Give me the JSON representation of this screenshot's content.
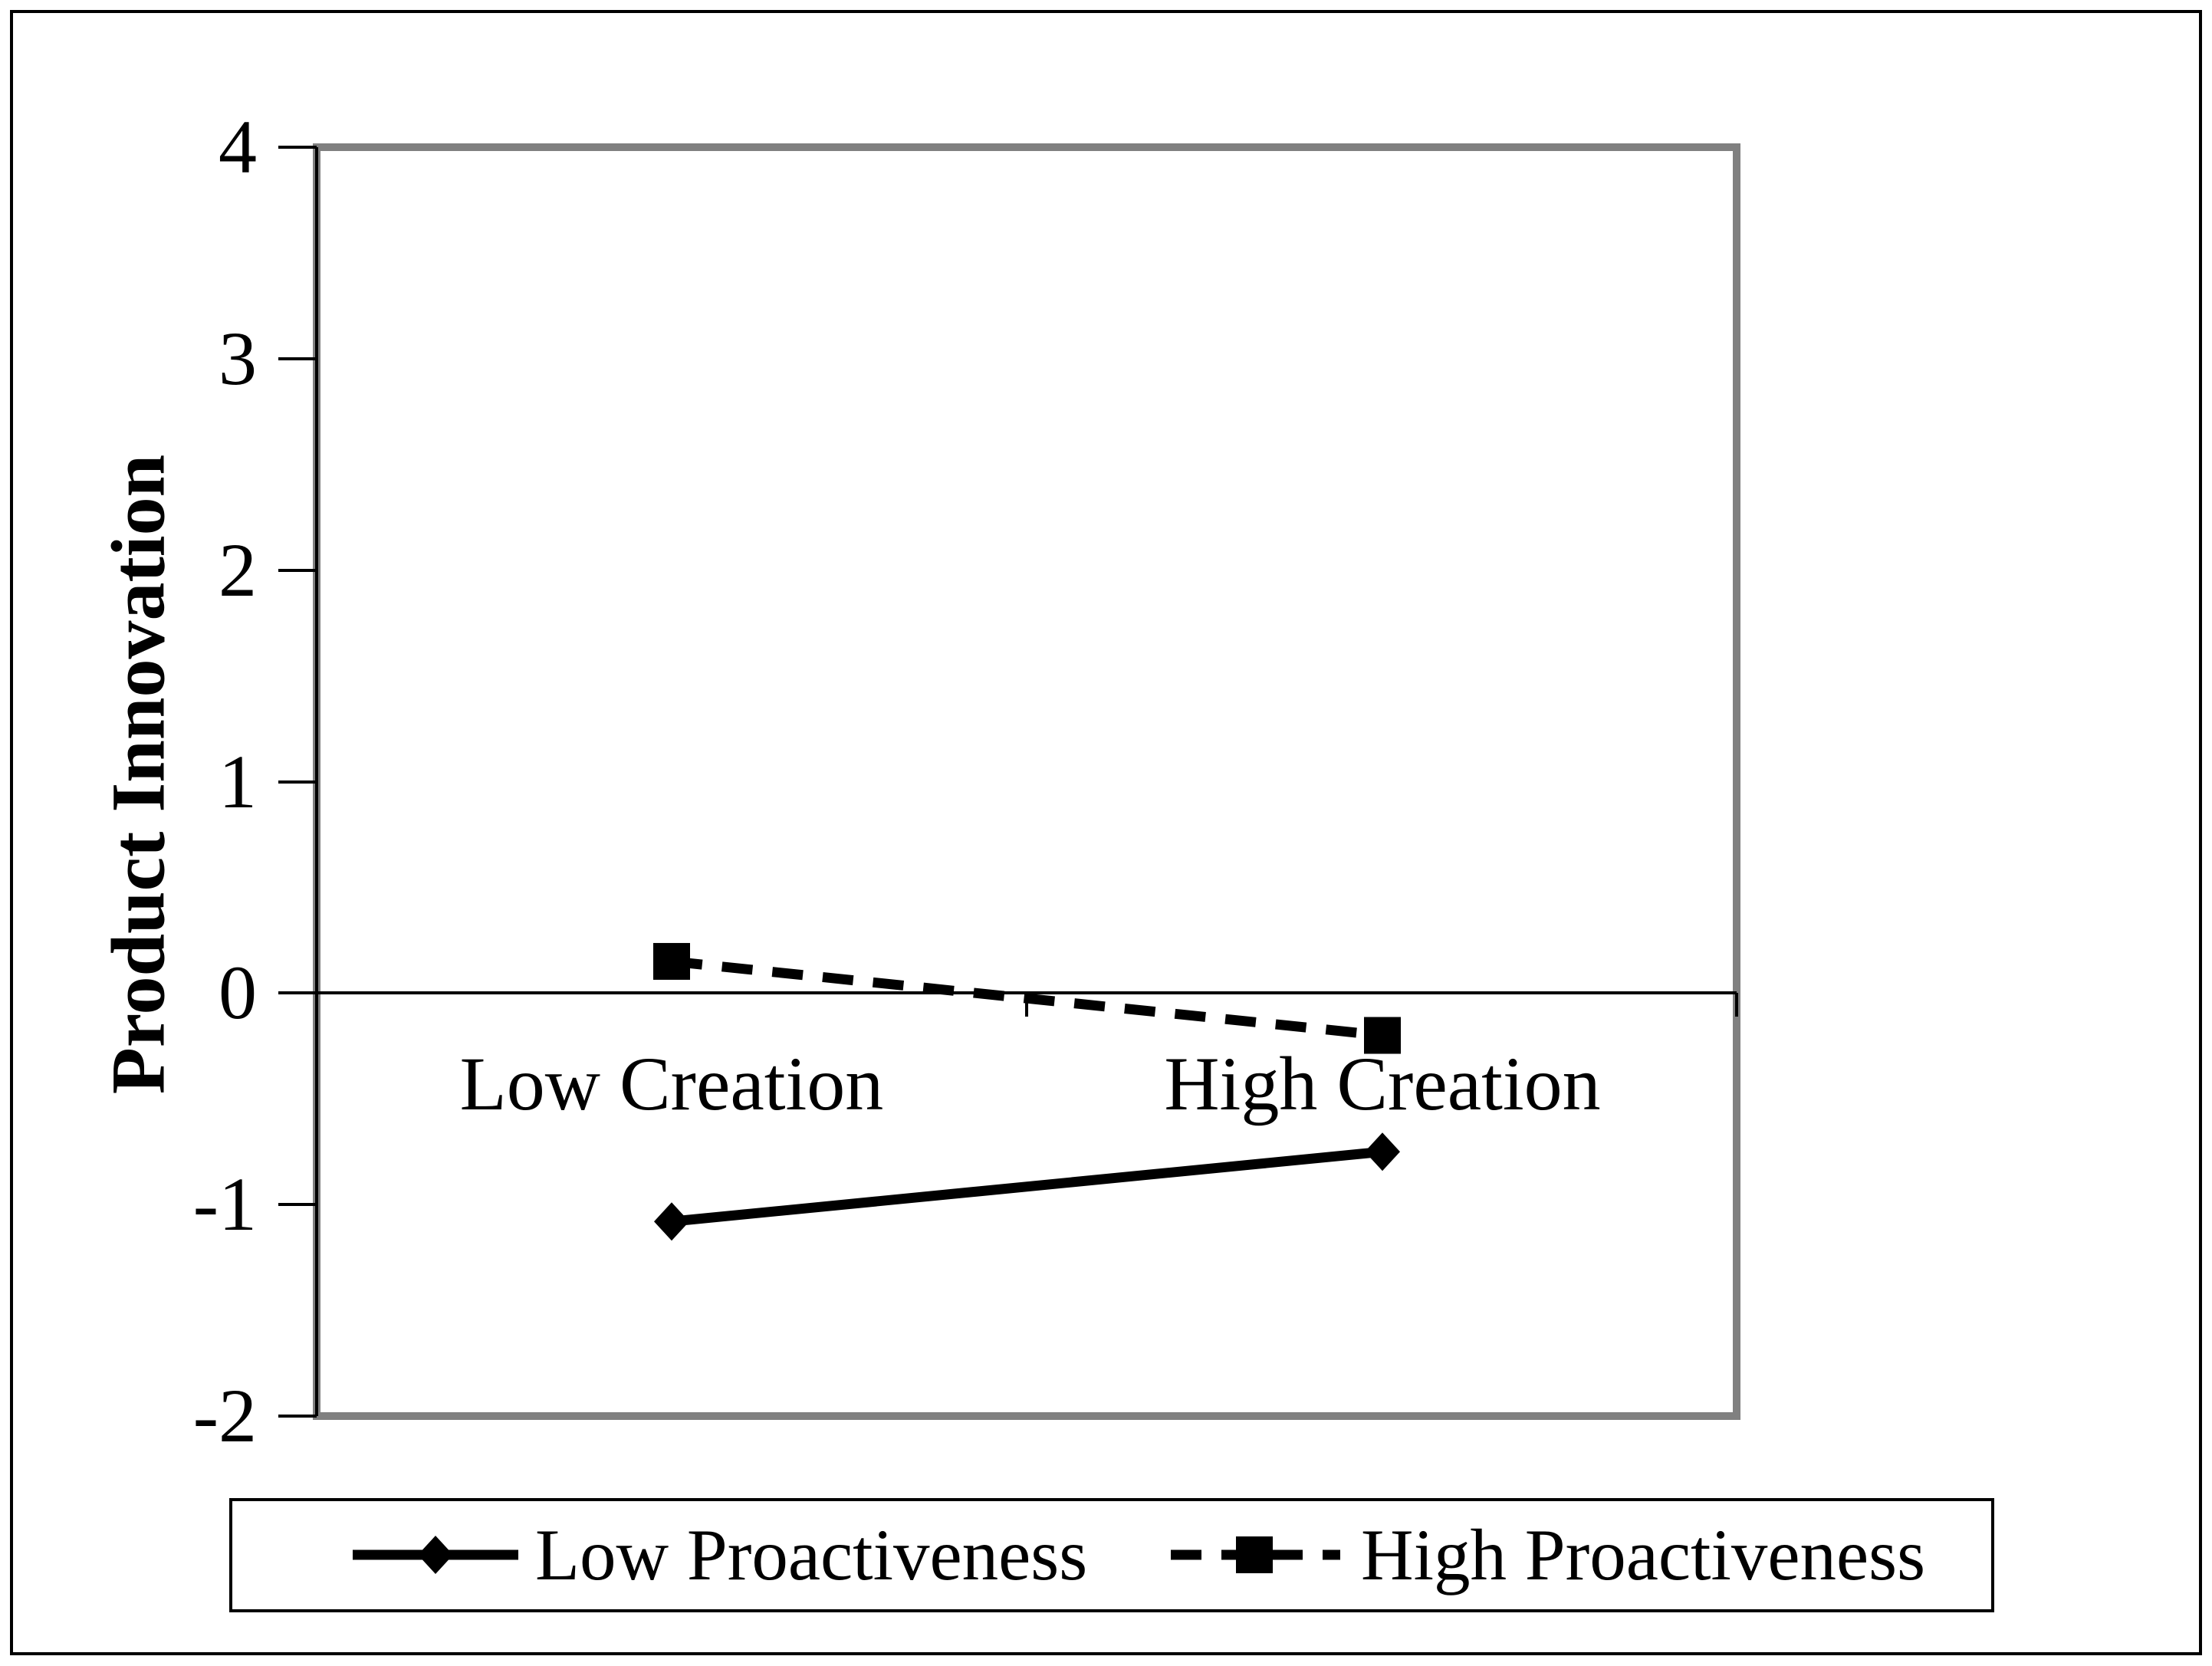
{
  "chart_data": {
    "type": "line",
    "title": "",
    "ylabel": "Product Innovation",
    "xlabel": "",
    "categories": [
      "Low Creation",
      "High Creation"
    ],
    "series": [
      {
        "name": "Low Proactiveness",
        "line_style": "solid",
        "marker": "diamond",
        "color": "#000000",
        "values": [
          -1.08,
          -0.75
        ]
      },
      {
        "name": "High Proactiveness",
        "line_style": "dashed",
        "marker": "square",
        "color": "#000000",
        "values": [
          0.15,
          -0.2
        ]
      }
    ],
    "ylim": [
      -2,
      4
    ],
    "ytick_labels": [
      "4",
      "3",
      "2",
      "1",
      "0",
      "-1",
      "-2"
    ],
    "grid": false,
    "zero_line": true,
    "legend_position": "bottom"
  },
  "colors": {
    "plot_border": "#808080",
    "axis": "#000000",
    "background": "#ffffff"
  }
}
